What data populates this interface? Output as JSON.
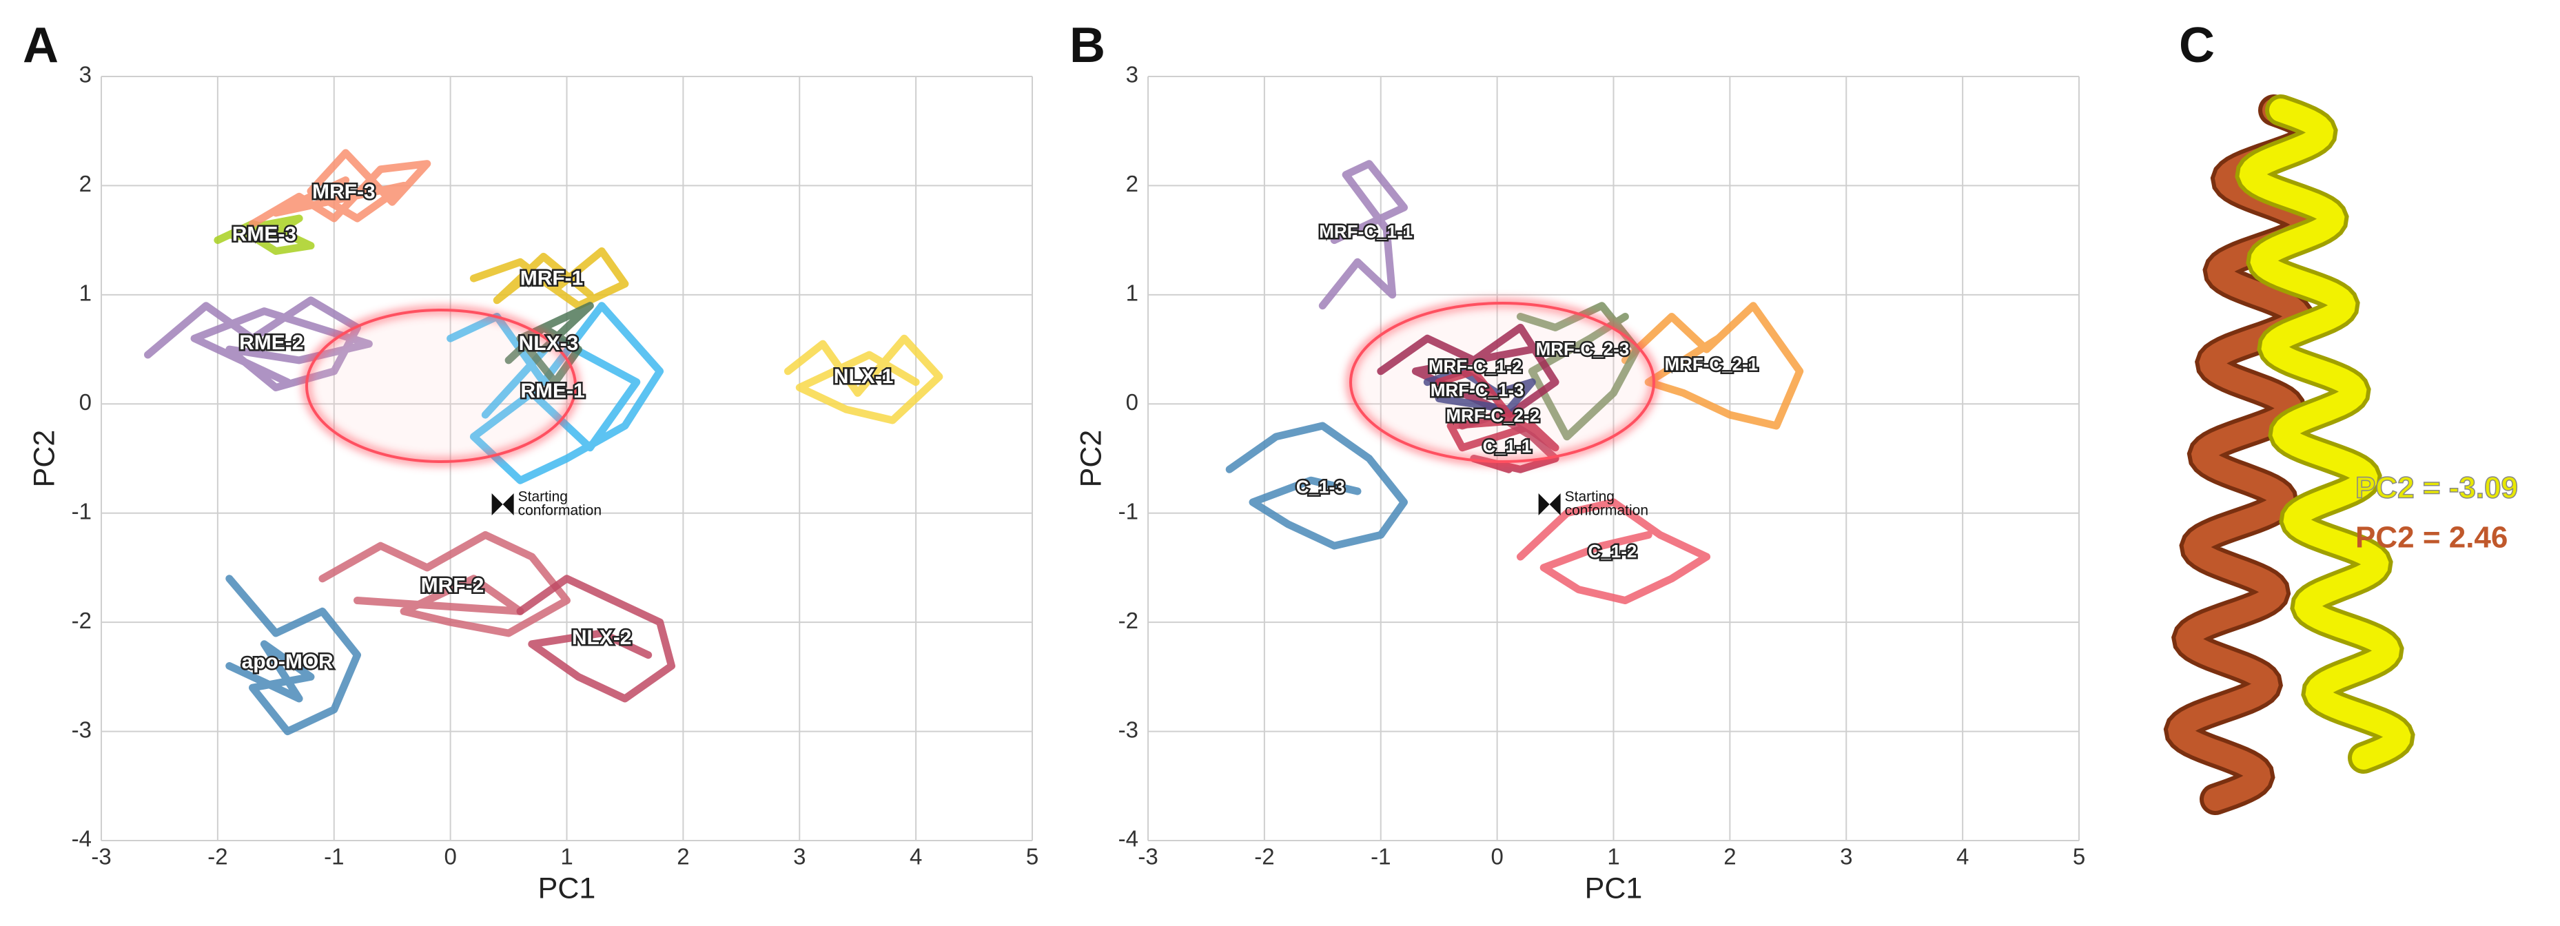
{
  "chart_data": [
    {
      "type": "line",
      "panel": "A",
      "xlabel": "PC1",
      "ylabel": "PC2",
      "xlim": [
        -3,
        5
      ],
      "ylim": [
        -4,
        3
      ],
      "xticks": [
        -3,
        -2,
        -1,
        0,
        1,
        2,
        3,
        4,
        5
      ],
      "yticks": [
        -4,
        -3,
        -2,
        -1,
        0,
        1,
        2,
        3
      ],
      "grid": true,
      "annotation": {
        "text_lines": [
          "Starting",
          "conformation"
        ],
        "x": 0.45,
        "y": -0.92
      },
      "series": [
        {
          "name": "apo-MOR",
          "color": "#4a8ab8",
          "x": [
            -1.9,
            -1.5,
            -1.1,
            -0.8,
            -1.0,
            -1.4,
            -1.7,
            -1.2,
            -1.6,
            -1.3,
            -1.9
          ],
          "values": [
            -1.6,
            -2.1,
            -1.9,
            -2.3,
            -2.8,
            -3.0,
            -2.6,
            -2.5,
            -2.2,
            -2.7,
            -2.4
          ]
        },
        {
          "name": "MRF-2",
          "color": "#d06878",
          "x": [
            -1.1,
            -0.6,
            -0.2,
            0.3,
            0.7,
            1.0,
            0.5,
            0.0,
            -0.4,
            0.2,
            0.6,
            -0.8
          ],
          "values": [
            -1.6,
            -1.3,
            -1.5,
            -1.2,
            -1.4,
            -1.8,
            -2.1,
            -2.0,
            -1.9,
            -1.6,
            -1.9,
            -1.8
          ]
        },
        {
          "name": "NLX-2",
          "color": "#c04a64",
          "x": [
            0.6,
            1.0,
            1.4,
            1.8,
            1.9,
            1.5,
            1.1,
            0.7,
            1.3,
            1.7
          ],
          "values": [
            -1.9,
            -1.6,
            -1.8,
            -2.0,
            -2.4,
            -2.7,
            -2.5,
            -2.2,
            -2.1,
            -2.3
          ]
        },
        {
          "name": "RME-2",
          "color": "#a080b8",
          "x": [
            -2.6,
            -2.1,
            -1.7,
            -1.2,
            -0.8,
            -1.0,
            -1.5,
            -1.9,
            -1.3,
            -0.7,
            -1.6,
            -2.2,
            -1.4
          ],
          "values": [
            0.45,
            0.9,
            0.6,
            0.95,
            0.7,
            0.3,
            0.15,
            0.5,
            0.4,
            0.55,
            0.85,
            0.6,
            0.2
          ]
        },
        {
          "name": "RME-3",
          "color": "#a8d020",
          "x": [
            -2.0,
            -1.7,
            -1.4,
            -1.2,
            -1.5,
            -1.8,
            -1.3,
            -1.6,
            -1.9
          ],
          "values": [
            1.5,
            1.65,
            1.55,
            1.45,
            1.4,
            1.6,
            1.7,
            1.5,
            1.55
          ]
        },
        {
          "name": "MRF-3",
          "color": "#f99070",
          "x": [
            -1.7,
            -1.3,
            -1.0,
            -0.6,
            -0.2,
            -0.5,
            -0.9,
            -1.2,
            -0.8,
            -0.4,
            -1.5,
            -0.9
          ],
          "values": [
            1.65,
            1.9,
            1.7,
            2.15,
            2.2,
            1.85,
            2.3,
            1.95,
            1.7,
            2.0,
            1.75,
            2.05
          ]
        },
        {
          "name": "NLX-1",
          "color": "#f8d848",
          "x": [
            2.9,
            3.2,
            3.5,
            3.9,
            4.2,
            3.8,
            3.4,
            3.0,
            3.6,
            4.0
          ],
          "values": [
            0.3,
            0.55,
            0.1,
            0.6,
            0.25,
            -0.15,
            -0.05,
            0.15,
            0.45,
            0.2
          ]
        },
        {
          "name": "RME-1",
          "color": "#40b8f0",
          "x": [
            0.0,
            0.4,
            0.8,
            1.3,
            1.8,
            1.5,
            1.0,
            0.6,
            0.2,
            0.7,
            1.2,
            1.6,
            0.9,
            0.3
          ],
          "values": [
            0.6,
            0.8,
            0.2,
            0.9,
            0.3,
            -0.2,
            -0.5,
            -0.7,
            -0.3,
            0.1,
            -0.4,
            0.2,
            0.6,
            -0.1
          ]
        },
        {
          "name": "MRF-1",
          "color": "#e8c020",
          "x": [
            0.2,
            0.6,
            0.9,
            1.3,
            1.5,
            1.1,
            0.7,
            0.4,
            0.8,
            1.2
          ],
          "values": [
            1.15,
            1.3,
            1.05,
            1.4,
            1.1,
            0.9,
            1.2,
            0.95,
            1.35,
            1.0
          ]
        },
        {
          "name": "NLX-3",
          "color": "#507858",
          "x": [
            0.5,
            0.8,
            1.1,
            0.9,
            0.6,
            1.2,
            0.8
          ],
          "values": [
            0.4,
            0.7,
            0.5,
            0.2,
            0.6,
            0.9,
            0.5
          ]
        }
      ]
    },
    {
      "type": "line",
      "panel": "B",
      "xlabel": "PC1",
      "ylabel": "PC2",
      "xlim": [
        -3,
        5
      ],
      "ylim": [
        -4,
        3
      ],
      "xticks": [
        -3,
        -2,
        -1,
        0,
        1,
        2,
        3,
        4,
        5
      ],
      "yticks": [
        -4,
        -3,
        -2,
        -1,
        0,
        1,
        2,
        3
      ],
      "grid": true,
      "annotation": {
        "text_lines": [
          "Starting",
          "conformation"
        ],
        "x": 0.45,
        "y": -0.92
      },
      "series": [
        {
          "name": "C_1-3",
          "color": "#4a8ab8",
          "x": [
            -2.3,
            -1.9,
            -1.5,
            -1.1,
            -0.8,
            -1.0,
            -1.4,
            -1.8,
            -2.1,
            -1.6,
            -1.2
          ],
          "values": [
            -0.6,
            -0.3,
            -0.2,
            -0.5,
            -0.9,
            -1.2,
            -1.3,
            -1.1,
            -0.9,
            -0.7,
            -0.8
          ]
        },
        {
          "name": "C_1-2",
          "color": "#f06070",
          "x": [
            0.2,
            0.6,
            1.0,
            1.4,
            1.8,
            1.5,
            1.1,
            0.7,
            0.4,
            0.9,
            1.3
          ],
          "values": [
            -1.4,
            -1.0,
            -0.9,
            -1.2,
            -1.4,
            -1.6,
            -1.8,
            -1.7,
            -1.5,
            -1.3,
            -1.2
          ]
        },
        {
          "name": "MRF-C_1-1",
          "color": "#a080b8",
          "x": [
            -1.5,
            -1.2,
            -0.9,
            -0.95,
            -1.3,
            -1.1,
            -0.8,
            -1.4,
            -1.0
          ],
          "values": [
            0.9,
            1.3,
            1.0,
            1.6,
            2.1,
            2.2,
            1.8,
            1.5,
            1.7
          ]
        },
        {
          "name": "MRF-C_2-1",
          "color": "#f8a040",
          "x": [
            1.1,
            1.5,
            1.8,
            2.2,
            2.6,
            2.4,
            2.0,
            1.6,
            1.3,
            1.9
          ],
          "values": [
            0.4,
            0.8,
            0.5,
            0.9,
            0.3,
            -0.2,
            -0.1,
            0.1,
            0.2,
            0.6
          ]
        },
        {
          "name": "MRF-C_2-3",
          "color": "#7a9060",
          "x": [
            0.2,
            0.5,
            0.9,
            1.2,
            1.0,
            0.6,
            0.3,
            0.8,
            1.1
          ],
          "values": [
            0.8,
            0.7,
            0.9,
            0.5,
            0.1,
            -0.3,
            0.3,
            0.6,
            0.8
          ]
        },
        {
          "name": "MRF-C_1-2",
          "color": "#901040",
          "x": [
            -1.0,
            -0.6,
            -0.2,
            0.2,
            0.5,
            0.1,
            -0.3,
            -0.7,
            0.3
          ],
          "values": [
            0.3,
            0.6,
            0.4,
            0.7,
            0.2,
            -0.1,
            0.1,
            0.3,
            0.5
          ]
        },
        {
          "name": "MRF-C_1-3",
          "color": "#303880",
          "x": [
            -0.6,
            -0.3,
            0.0,
            0.3,
            0.1,
            -0.2,
            -0.5
          ],
          "values": [
            0.2,
            0.3,
            0.1,
            0.2,
            -0.05,
            0.0,
            0.05
          ]
        },
        {
          "name": "MRF-C_2-2",
          "color": "#c02040",
          "x": [
            -0.5,
            -0.2,
            0.1,
            0.5,
            0.3,
            -0.3,
            -0.4,
            0.2
          ],
          "values": [
            0.2,
            0.3,
            -0.1,
            -0.4,
            -0.2,
            -0.4,
            -0.2,
            -0.15
          ]
        },
        {
          "name": "C_1-1",
          "color": "#b83050",
          "x": [
            -0.3,
            0.0,
            0.3,
            0.5,
            0.2,
            -0.2,
            0.1
          ],
          "values": [
            -0.2,
            -0.1,
            -0.3,
            -0.5,
            -0.6,
            -0.5,
            -0.6
          ]
        }
      ]
    }
  ],
  "panel_c": {
    "panel": "C",
    "labels": [
      {
        "text": "PC2 = -3.09",
        "color": "#e8e800"
      },
      {
        "text": "PC2 = 2.46",
        "color": "#c0582b"
      }
    ]
  }
}
